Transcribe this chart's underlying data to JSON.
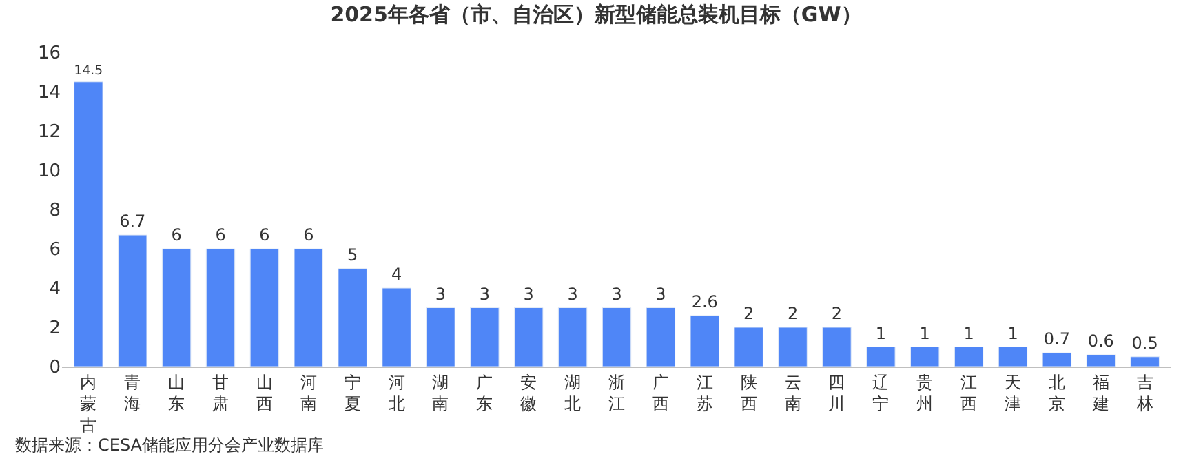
{
  "chart_data": {
    "type": "bar",
    "title": "2025年各省（市、自治区）新型储能总装机目标（GW）",
    "categories": [
      "内蒙古",
      "青海",
      "山东",
      "甘肃",
      "山西",
      "河南",
      "宁夏",
      "河北",
      "湖南",
      "广东",
      "安徽",
      "湖北",
      "浙江",
      "广西",
      "江苏",
      "陕西",
      "云南",
      "四川",
      "辽宁",
      "贵州",
      "江西",
      "天津",
      "北京",
      "福建",
      "吉林"
    ],
    "values": [
      14.5,
      6.7,
      6,
      6,
      6,
      6,
      5,
      4,
      3,
      3,
      3,
      3,
      3,
      3,
      2.6,
      2,
      2,
      2,
      1,
      1,
      1,
      1,
      0.7,
      0.6,
      0.5
    ],
    "color": "#4f86f7",
    "ylim": [
      0,
      16
    ],
    "yticks": [
      0,
      2,
      4,
      6,
      8,
      10,
      12,
      14,
      16
    ],
    "legend": false,
    "data_labels": true,
    "annotations": [
      "数据来源：CESA储能应用分会产业数据库"
    ]
  }
}
